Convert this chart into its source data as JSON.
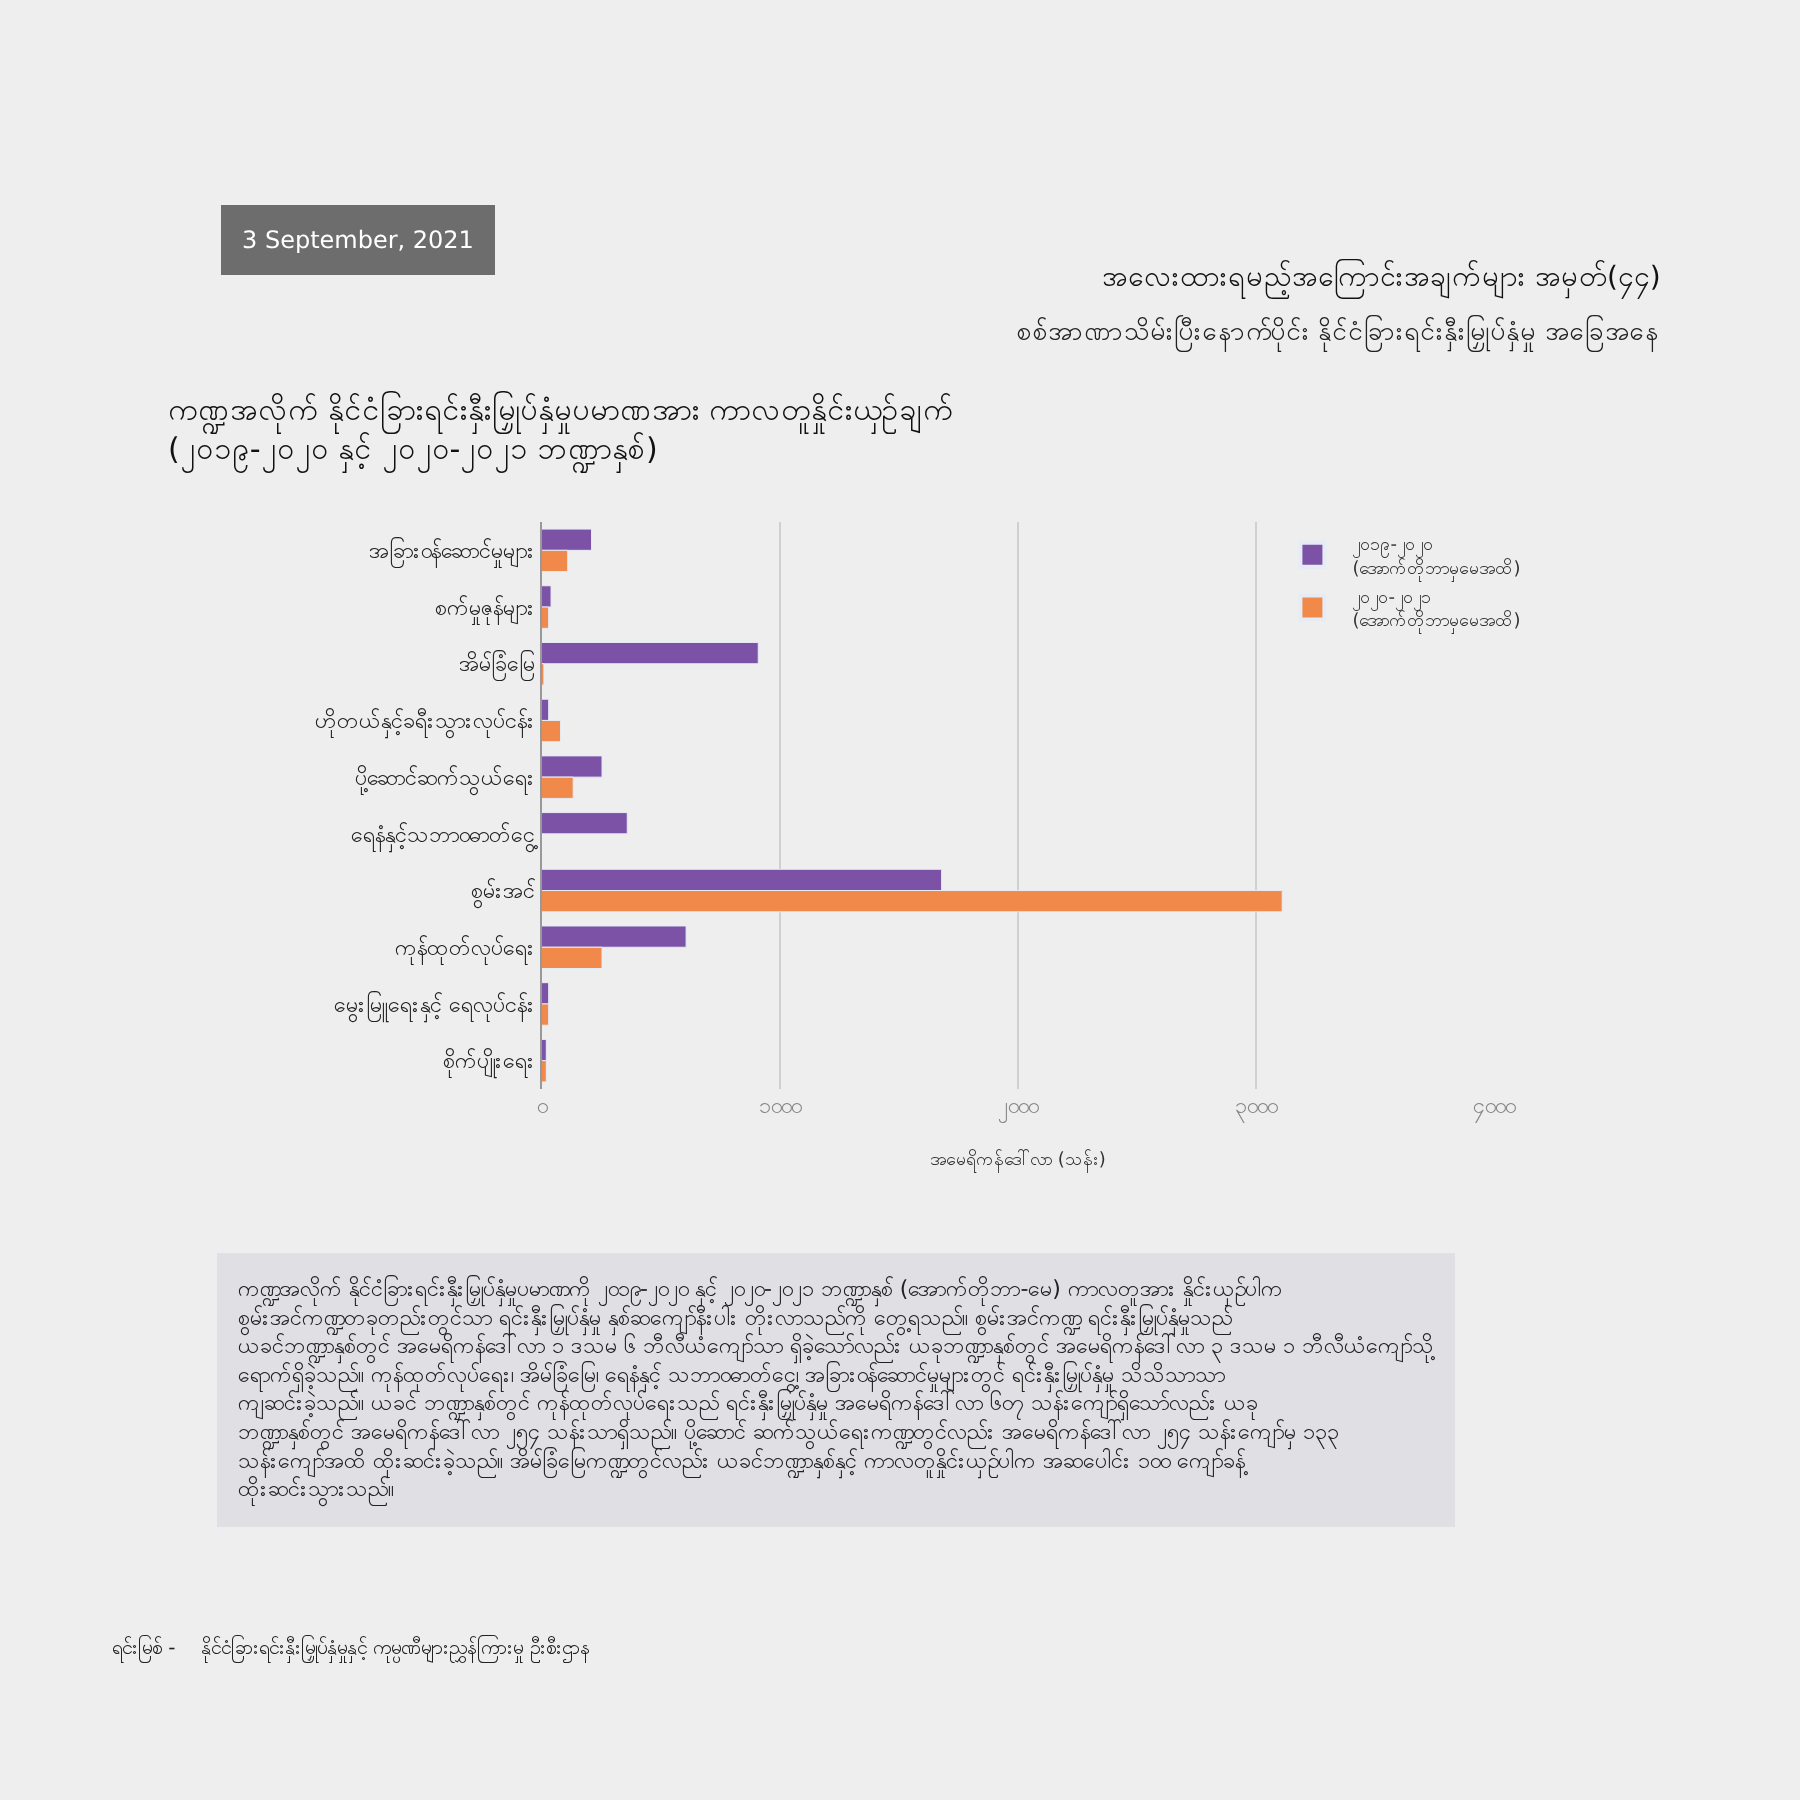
{
  "chart_data": {
    "type": "bar",
    "orientation": "horizontal",
    "title": "ကဏ္ဍအလိုက် နိုင်ငံခြားရင်းနှီးမြှုပ်နှံမှုပမာဏအား ကာလတူနှိုင်းယှဉ်ချက်\n(၂၀၁၉-၂၀၂၀ နှင့် ၂၀၂၀-၂၀၂၁ ဘဏ္ဍာနှစ်)",
    "xlabel": "အမေရိကန်ဒေါ်လာ (သန်း)",
    "categories": [
      "အခြားဝန်ဆောင်မှုများ",
      "စက်မှုဇုန်များ",
      "အိမ်ခြံမြေ",
      "ဟိုတယ်နှင့်ခရီးသွားလုပ်ငန်း",
      "ပို့ဆောင်ဆက်သွယ်ရေး",
      "ရေနံနှင့်သဘာဝဓာတ်ငွေ့",
      "စွမ်းအင်",
      "ကုန်ထုတ်လုပ်ရေး",
      "မွေးမြူရေးနှင့် ရေလုပ်ငန်း",
      "စိုက်ပျိုးရေး"
    ],
    "series": [
      {
        "name": "၂၀၁၉-၂၀၂၀\n(အောက်တိုဘာမှမေအထိ)",
        "color": "#7b52a6",
        "values": [
          210,
          40,
          910,
          30,
          254,
          360,
          1680,
          607,
          30,
          20
        ]
      },
      {
        "name": "၂၀၂၀-၂၀၂၁\n(အောက်တိုဘာမှမေအထိ)",
        "color": "#f0894a",
        "values": [
          110,
          30,
          10,
          80,
          133,
          null,
          3110,
          254,
          30,
          20
        ]
      }
    ],
    "xlim": [
      0,
      4000
    ],
    "xticks": [
      {
        "value": 0,
        "label": "၀"
      },
      {
        "value": 1000,
        "label": "၁၀၀၀"
      },
      {
        "value": 2000,
        "label": "၂၀၀၀"
      },
      {
        "value": 3000,
        "label": "၃၀၀၀"
      },
      {
        "value": 4000,
        "label": "၄၀၀၀"
      }
    ],
    "grid": "x",
    "legend": "top right",
    "annotations": [
      "3 September, 2021",
      "အလေးထားရမည့်အကြောင်းအချက်များ အမှတ်(၄၄)",
      "စစ်အာဏာသိမ်းပြီးနောက်ပိုင်း နိုင်ငံခြားရင်းနှီးမြှုပ်နှံမှု အခြေအနေ",
      "ကဏ္ဍအလိုက် နိုင်ငံခြားရင်းနှီးမြှုပ်နှံမှုပမာဏကို ၂၀၁၉-၂၀၂၀ နှင့် ၂၀၂၀-၂၀၂၁ ဘဏ္ဍာနှစ် (အောက်တိုဘာ-မေ) ကာလတူအား နှိုင်းယှဉ်ပါက စွမ်းအင်ကဏ္ဍတခုတည်းတွင်သာ ရင်းနှီးမြှုပ်နှံမှု နှစ်ဆကျော်နီးပါး တိုးလာသည်ကို တွေ့ရသည်။ စွမ်းအင်ကဏ္ဍ ရင်းနှီးမြှုပ်နှံမှုသည် ယခင်ဘဏ္ဍာနှစ်တွင် အမေရိကန်ဒေါ်လာ ၁ ဒသမ ၆ ဘီလီယံကျော်သာ ရှိခဲ့သော်လည်း ယခုဘဏ္ဍာနှစ်တွင် အမေရိကန်ဒေါ်လာ ၃ ဒသမ ၁ ဘီလီယံကျော်သို့ ရောက်ရှိခဲ့သည်။ ကုန်ထုတ်လုပ်ရေး၊ အိမ်ခြံမြေ၊ ရေနံနှင့် သဘာဝဓာတ်ငွေ့၊ အခြားဝန်ဆောင်မှုများတွင် ရင်းနှီးမြှုပ်နှံမှု သိသိသာသာ ကျဆင်းခဲ့သည်။ ယခင် ဘဏ္ဍာနှစ်တွင် ကုန်ထုတ်လုပ်ရေးသည် ရင်းနှီးမြှုပ်နှံမှု အမေရိကန်ဒေါ်လာ ၆၀၇ သန်းကျော်ရှိသော်လည်း ယခု ဘဏ္ဍာနှစ်တွင် အမေရိကန်ဒေါ်လာ ၂၅၄ သန်းသာရှိသည်။ ပို့ဆောင် ဆက်သွယ်ရေးကဏ္ဍတွင်လည်း အမေရိကန်ဒေါ်လာ ၂၅၄ သန်းကျော်မှ ၁၃၃ သန်းကျော်အထိ ထိုးဆင်းခဲ့သည်။ အိမ်ခြံမြေကဏ္ဍတွင်လည်း ယခင်ဘဏ္ဍာနှစ်နှင့် ကာလတူနှိုင်းယှဉ်ပါက အဆပေါင်း ၁၀၀ ကျော်ခန့် ထိုးဆင်းသွားသည်။",
      "ရင်းမြစ် -    နိုင်ငံခြားရင်းနှီးမြှုပ်နှံမှုနှင့် ကုမ္ပဏီများညွှန်ကြားမှု ဦးစီးဌာန"
    ]
  }
}
